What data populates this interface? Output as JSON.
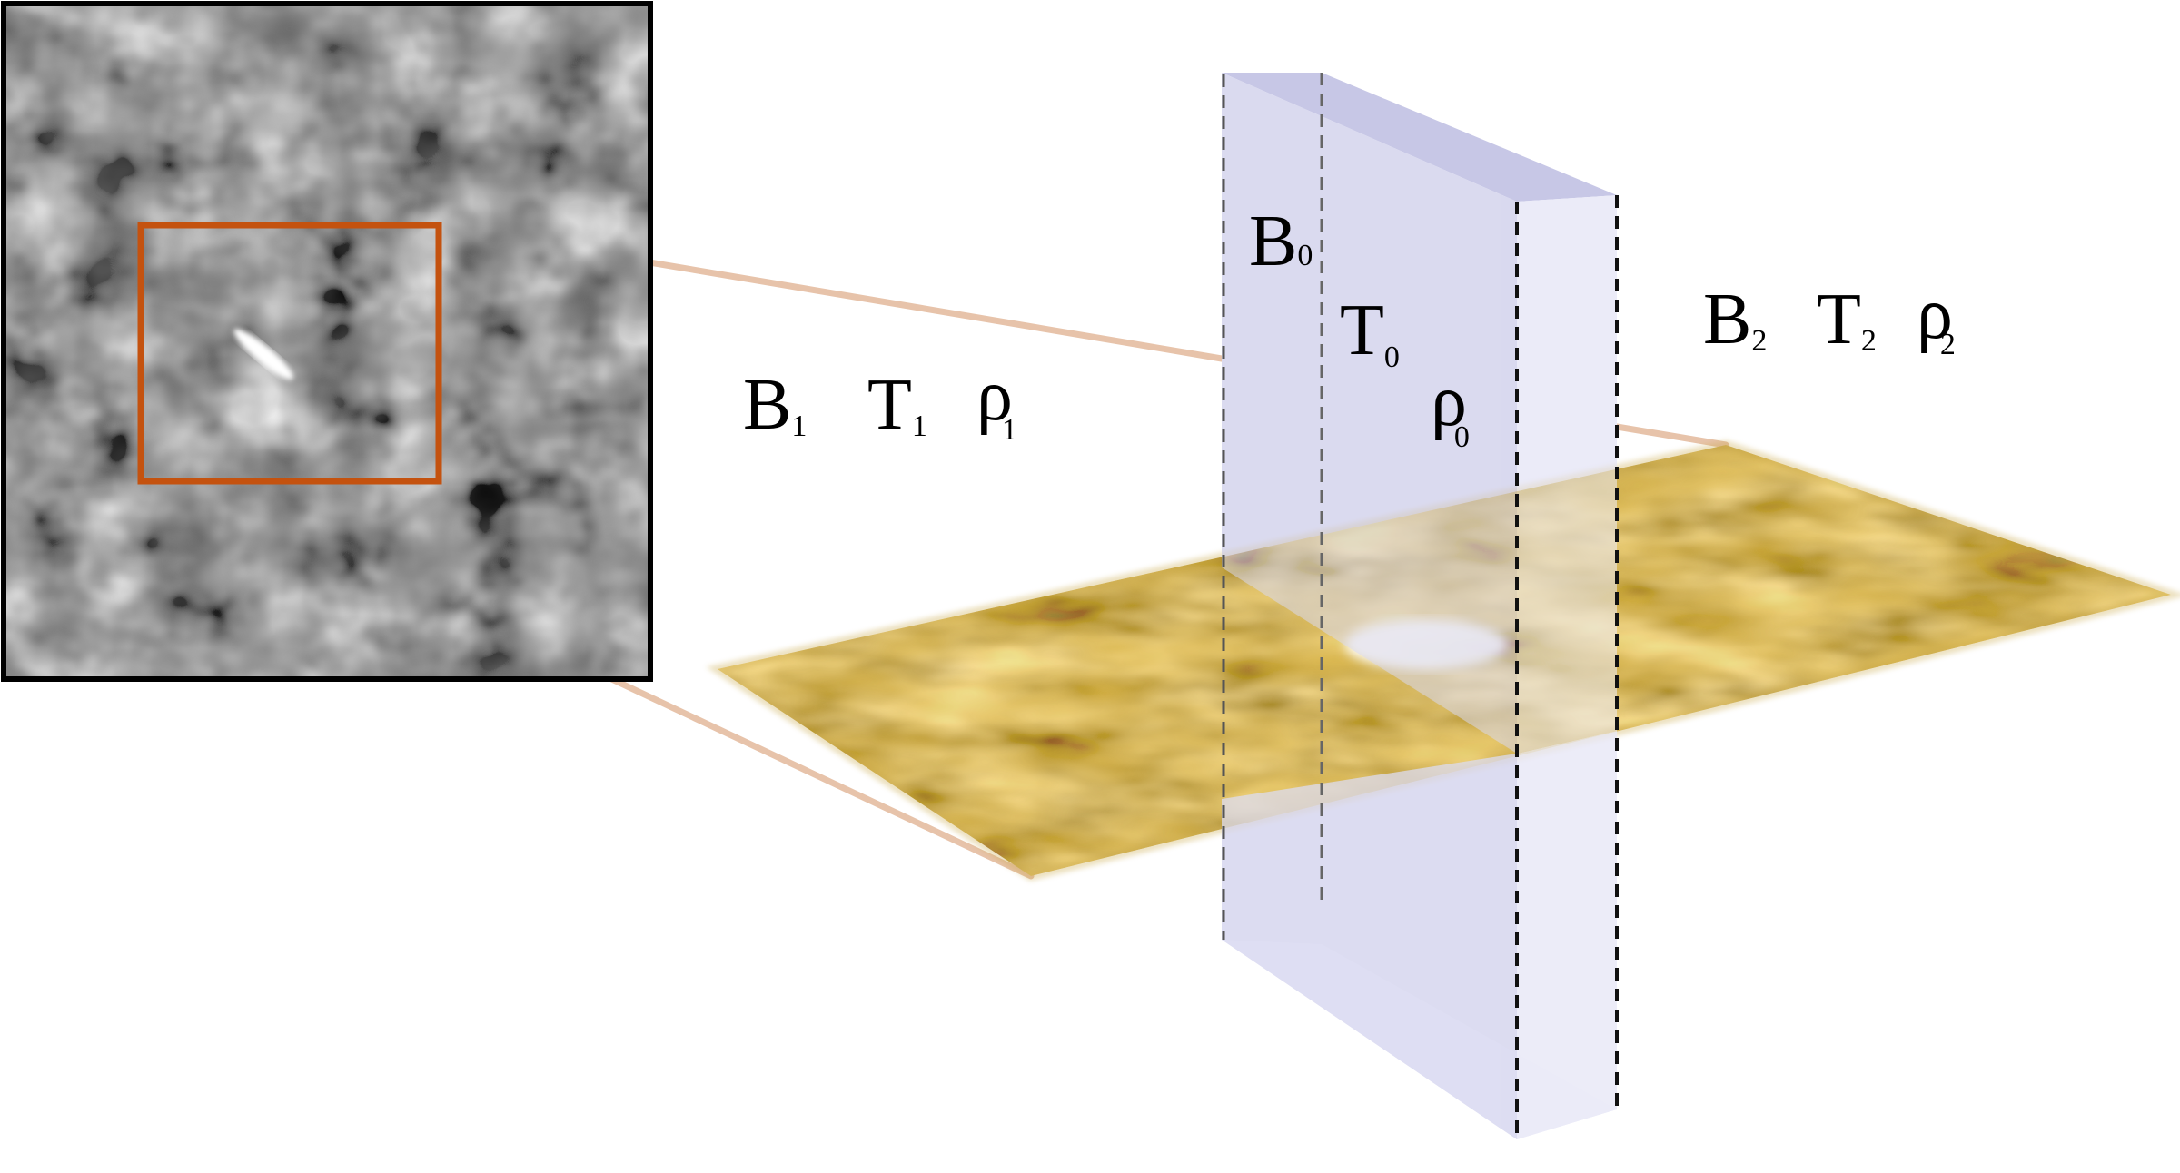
{
  "figure": {
    "region_left": {
      "symbols": [
        {
          "base": "B",
          "sub": "1"
        },
        {
          "base": "T",
          "sub": "1"
        },
        {
          "base": "ρ",
          "sub": "1"
        }
      ]
    },
    "slab": {
      "symbols": [
        {
          "base": "B",
          "sub": "0"
        },
        {
          "base": "T",
          "sub": "0"
        },
        {
          "base": "ρ",
          "sub": "0"
        }
      ]
    },
    "region_right": {
      "symbols": [
        {
          "base": "B",
          "sub": "2"
        },
        {
          "base": "T",
          "sub": "2"
        },
        {
          "base": "ρ",
          "sub": "2"
        }
      ]
    },
    "colors": {
      "highlight_box": "#c4520f",
      "projection_lines": "#e7c3aa",
      "slab_front": "#dcdcf0",
      "slab_top": "#c7c7e6",
      "slab_side": "#eaeaf8",
      "surface_dark": "#1e1606",
      "surface_light": "#d9b54a"
    }
  }
}
